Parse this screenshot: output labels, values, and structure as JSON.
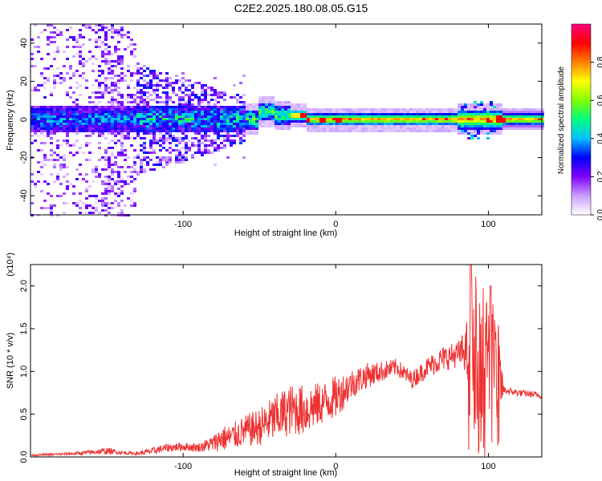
{
  "title": "C2E2.2025.180.08.05.G15",
  "chart_data": [
    {
      "type": "heatmap",
      "xlabel": "Height of straight line (km)",
      "ylabel": "Frequency (Hz)",
      "xlim": [
        -200,
        135
      ],
      "ylim": [
        -50,
        50
      ],
      "xticks": [
        -100,
        0,
        100
      ],
      "yticks": [
        -40,
        -20,
        0,
        20,
        40
      ],
      "colorbar": {
        "label": "Normalized spectral amplitude",
        "range": [
          0,
          1
        ],
        "ticks": [
          "0.0",
          "0.2",
          "0.4",
          "0.6",
          "0.8"
        ],
        "colors": [
          "#ffffff",
          "#c9a0ff",
          "#8000ff",
          "#0000ff",
          "#00c0ff",
          "#00ff80",
          "#80ff00",
          "#ffff00",
          "#ff8000",
          "#ff0000",
          "#ff0080"
        ]
      }
    },
    {
      "type": "line",
      "xlabel": "Height of straight line (km)",
      "ylabel": "SNR (10 * v/v)",
      "y_multiplier": "(x10⁴)",
      "xlim": [
        -200,
        135
      ],
      "ylim": [
        0,
        2.25
      ],
      "xticks": [
        -100,
        0,
        100
      ],
      "yticks": [
        "0.0",
        "0.5",
        "1.0",
        "1.5",
        "2.0"
      ],
      "color": "#ee3333",
      "envelope": {
        "x": [
          -200,
          -170,
          -150,
          -140,
          -130,
          -120,
          -110,
          -100,
          -90,
          -80,
          -75,
          -70,
          -60,
          -50,
          -40,
          -30,
          -20,
          -10,
          0,
          10,
          20,
          30,
          40,
          50,
          60,
          70,
          80,
          85,
          90,
          95,
          100,
          105,
          110,
          120,
          135
        ],
        "y": [
          0.02,
          0.04,
          0.07,
          0.05,
          0.04,
          0.07,
          0.11,
          0.12,
          0.11,
          0.16,
          0.22,
          0.22,
          0.3,
          0.35,
          0.45,
          0.55,
          0.55,
          0.62,
          0.7,
          0.85,
          0.95,
          1.0,
          1.05,
          0.9,
          1.05,
          1.15,
          1.2,
          1.25,
          1.1,
          1.05,
          0.95,
          1.0,
          0.78,
          0.75,
          0.72
        ],
        "noise": [
          0.01,
          0.02,
          0.04,
          0.02,
          0.02,
          0.04,
          0.05,
          0.05,
          0.05,
          0.1,
          0.15,
          0.15,
          0.18,
          0.22,
          0.28,
          0.3,
          0.3,
          0.25,
          0.25,
          0.18,
          0.15,
          0.12,
          0.1,
          0.1,
          0.12,
          0.15,
          0.15,
          0.25,
          1.05,
          1.0,
          0.95,
          0.9,
          0.05,
          0.04,
          0.04
        ]
      }
    }
  ]
}
